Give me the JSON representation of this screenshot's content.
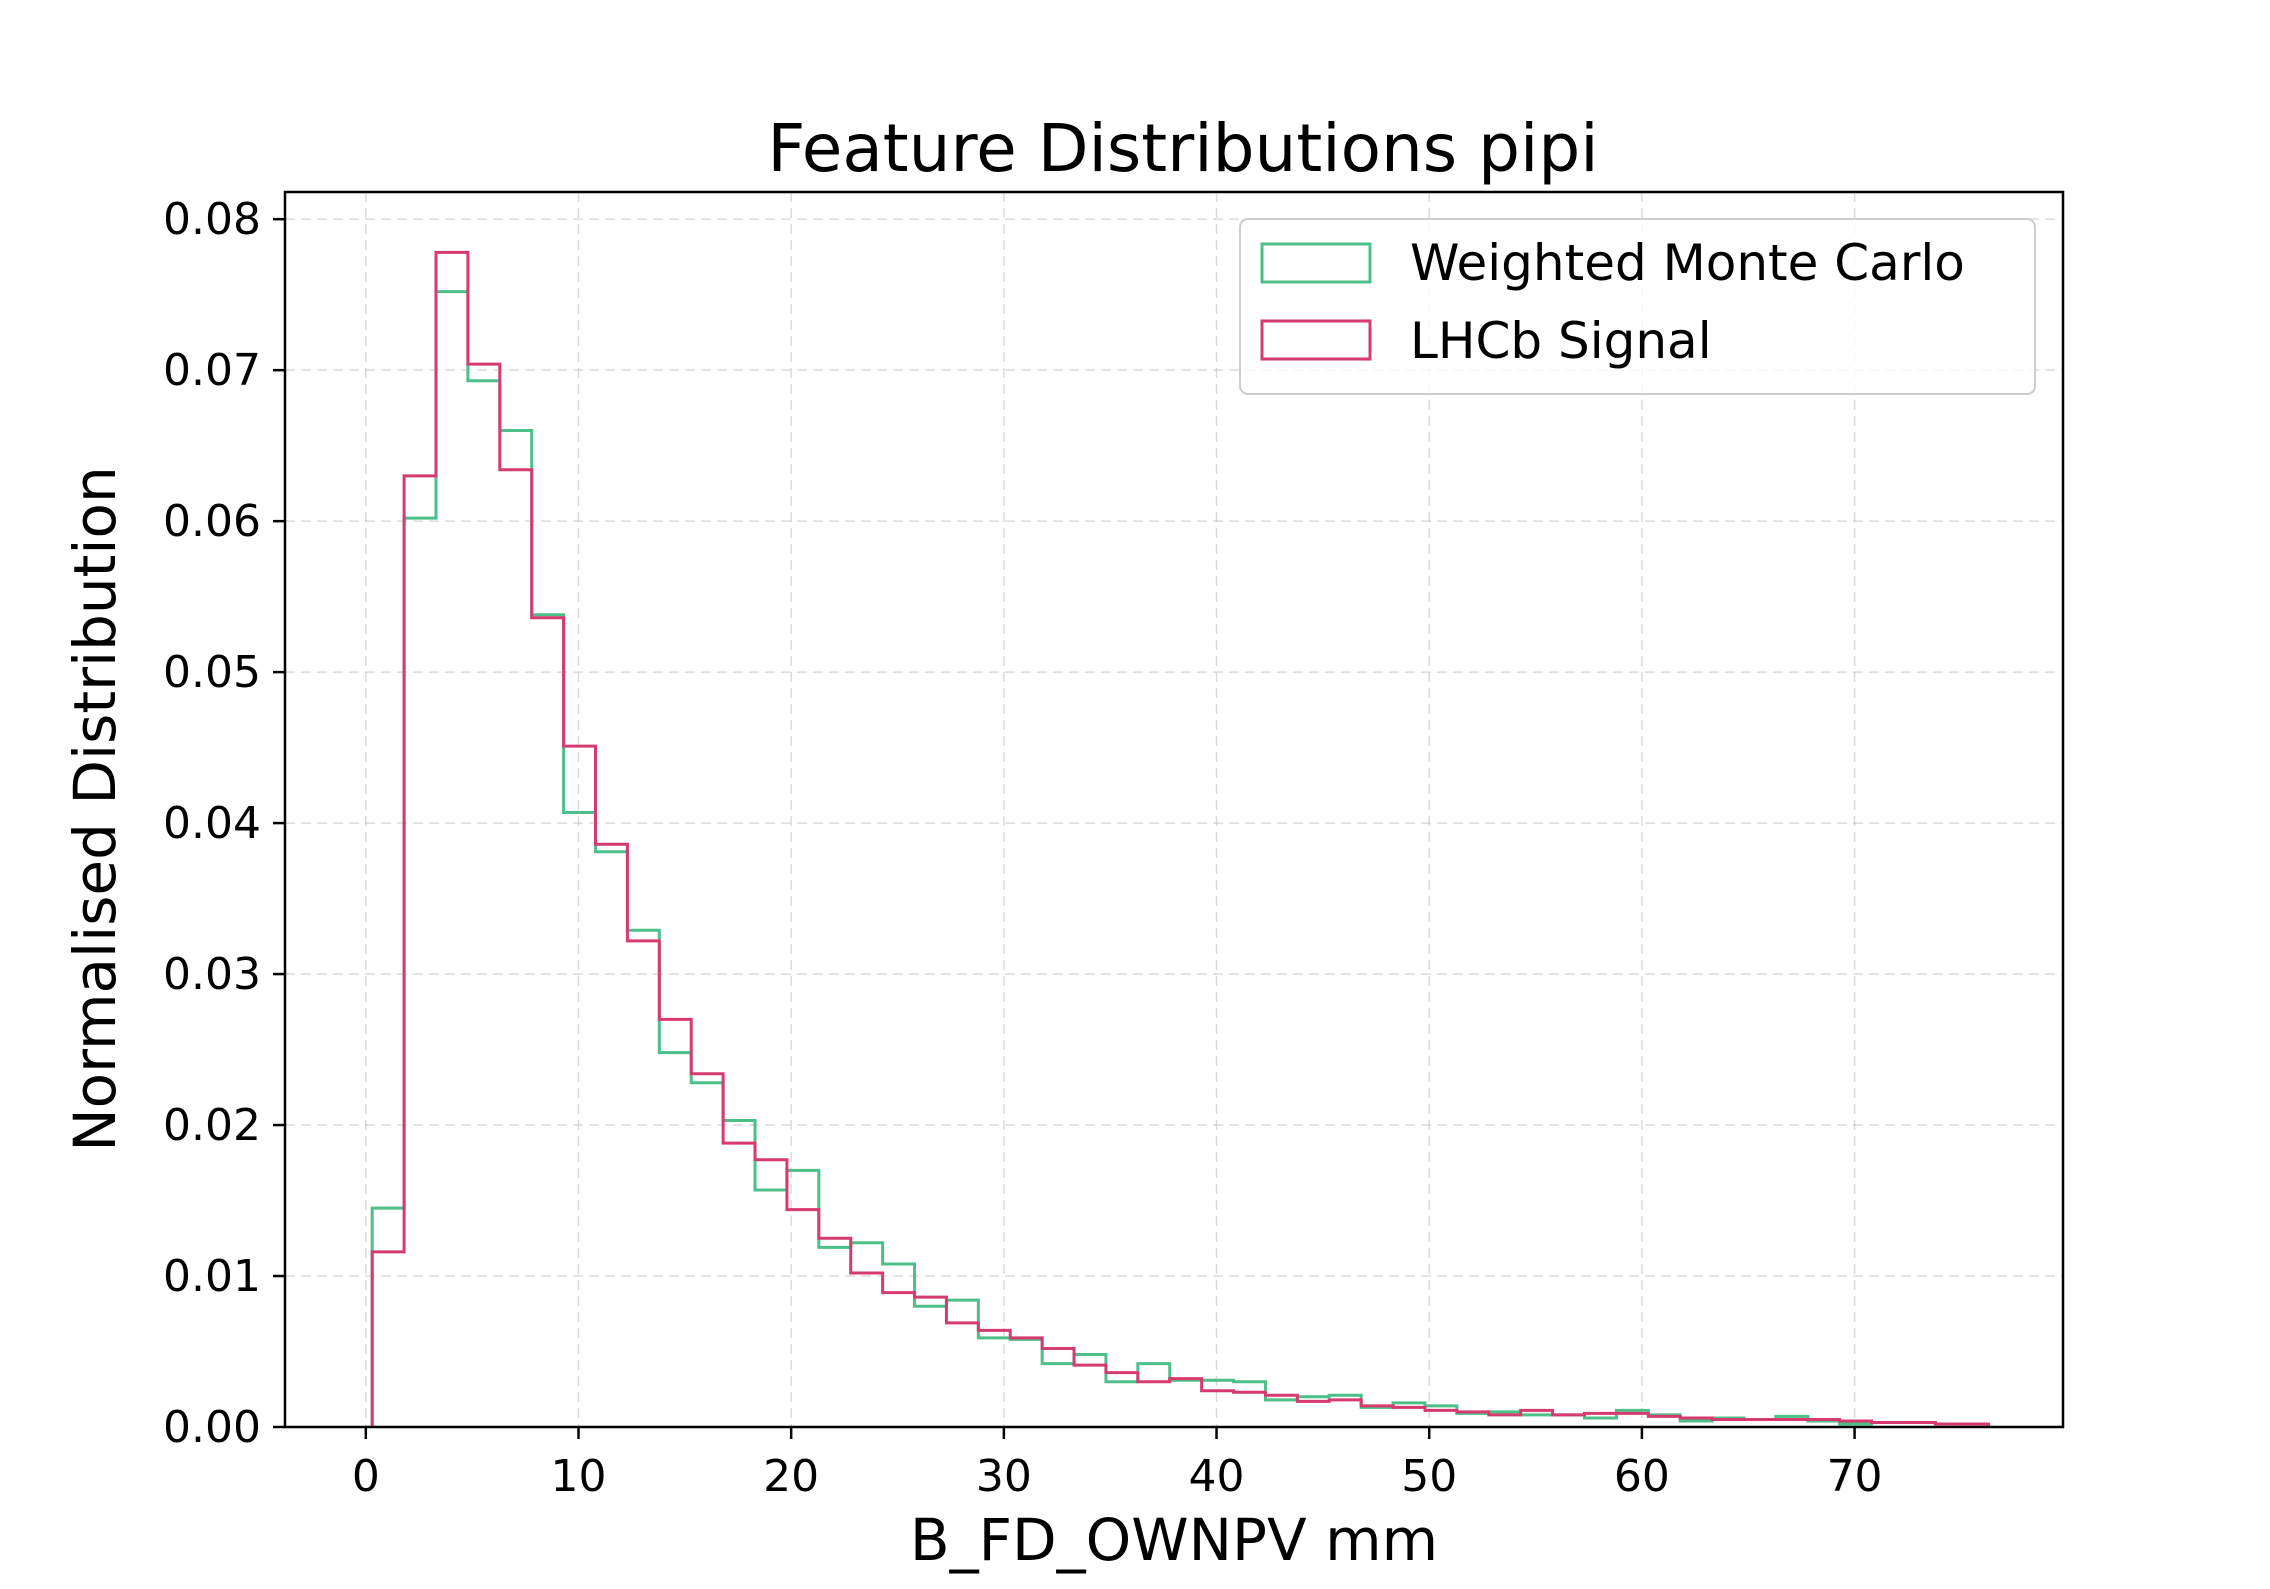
{
  "chart_data": {
    "type": "step-histogram",
    "title": "Feature Distributions pipi",
    "xlabel": "B_FD_OWNPV mm",
    "ylabel": "Normalised Distribution",
    "xlim": [
      -3.8,
      79.8
    ],
    "ylim": [
      0,
      0.0818
    ],
    "xticks": [
      "0",
      "10",
      "20",
      "30",
      "40",
      "50",
      "60",
      "70"
    ],
    "yticks": [
      "0.00",
      "0.01",
      "0.02",
      "0.03",
      "0.04",
      "0.05",
      "0.06",
      "0.07",
      "0.08"
    ],
    "xtick_values": [
      0,
      10,
      20,
      30,
      40,
      50,
      60,
      70
    ],
    "ytick_values": [
      0,
      0.01,
      0.02,
      0.03,
      0.04,
      0.05,
      0.06,
      0.07,
      0.08
    ],
    "grid": true,
    "legend_position": "top-right",
    "bin_edges": [
      0.3,
      1.8,
      3.3,
      4.8,
      6.3,
      7.8,
      9.3,
      10.8,
      12.3,
      13.8,
      15.3,
      16.8,
      18.3,
      19.8,
      21.3,
      22.8,
      24.3,
      25.8,
      27.3,
      28.8,
      30.3,
      31.8,
      33.3,
      34.8,
      36.3,
      37.8,
      39.3,
      40.8,
      42.3,
      43.8,
      45.3,
      46.8,
      48.3,
      49.8,
      51.3,
      52.8,
      54.3,
      55.8,
      57.3,
      58.8,
      60.3,
      61.8,
      63.3,
      64.8,
      66.3,
      67.8,
      69.3,
      70.8,
      72.3,
      73.8,
      75.3,
      76.3
    ],
    "series": [
      {
        "name": "Weighted Monte Carlo",
        "color": "#4dbf88",
        "values": [
          0.0145,
          0.0602,
          0.0752,
          0.0693,
          0.066,
          0.0538,
          0.0407,
          0.0381,
          0.0329,
          0.0248,
          0.0228,
          0.0203,
          0.0157,
          0.017,
          0.0119,
          0.0122,
          0.0108,
          0.008,
          0.0084,
          0.0059,
          0.0058,
          0.0042,
          0.0048,
          0.003,
          0.0042,
          0.0031,
          0.0031,
          0.003,
          0.0018,
          0.002,
          0.0021,
          0.0013,
          0.0016,
          0.0014,
          0.0009,
          0.001,
          0.0008,
          0.0008,
          0.0006,
          0.0011,
          0.0008,
          0.0004,
          0.0006,
          0.0005,
          0.0007,
          0.0004,
          0.0002,
          0.0003,
          0.0003,
          0.0002,
          0.0002
        ]
      },
      {
        "name": "LHCb Signal",
        "color": "#d63a6e",
        "values": [
          0.0116,
          0.063,
          0.0778,
          0.0704,
          0.0634,
          0.0536,
          0.0451,
          0.0386,
          0.0322,
          0.027,
          0.0234,
          0.0188,
          0.0177,
          0.0144,
          0.0125,
          0.0102,
          0.0089,
          0.0086,
          0.0069,
          0.0064,
          0.0059,
          0.0052,
          0.0041,
          0.0036,
          0.003,
          0.0032,
          0.0024,
          0.0023,
          0.0021,
          0.0017,
          0.0018,
          0.0014,
          0.0013,
          0.0011,
          0.001,
          0.0008,
          0.0011,
          0.0008,
          0.0009,
          0.0009,
          0.0007,
          0.0006,
          0.0005,
          0.0005,
          0.0005,
          0.0005,
          0.0004,
          0.0003,
          0.0003,
          0.0002,
          0.0002
        ]
      }
    ]
  }
}
